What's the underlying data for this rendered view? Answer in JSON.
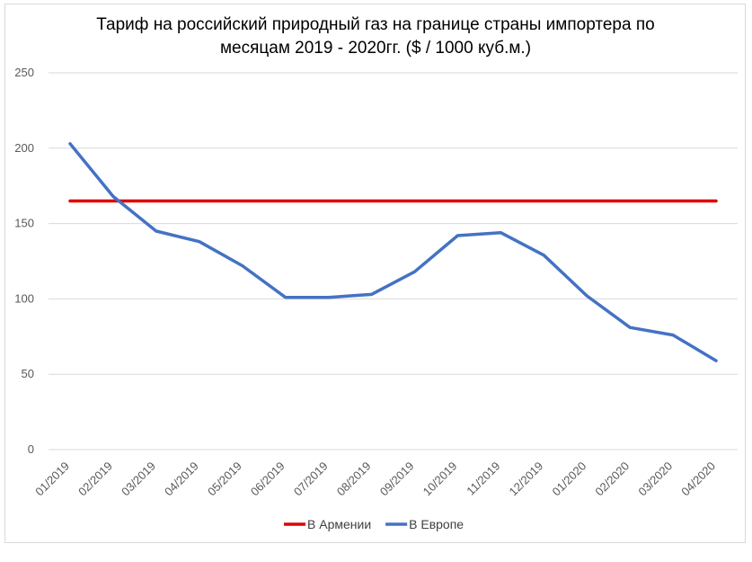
{
  "chart_data": {
    "type": "line",
    "title_lines": [
      "Тариф на российский природный газ на границе страны импортера по",
      "месяцам 2019 - 2020гг. ($ / 1000 куб.м.)"
    ],
    "categories": [
      "01/2019",
      "02/2019",
      "03/2019",
      "04/2019",
      "05/2019",
      "06/2019",
      "07/2019",
      "08/2019",
      "09/2019",
      "10/2019",
      "11/2019",
      "12/2019",
      "01/2020",
      "02/2020",
      "03/2020",
      "04/2020"
    ],
    "series": [
      {
        "name": "В Армении",
        "color": "#e00000",
        "values": [
          165,
          165,
          165,
          165,
          165,
          165,
          165,
          165,
          165,
          165,
          165,
          165,
          165,
          165,
          165,
          165
        ]
      },
      {
        "name": "В Европе",
        "color": "#4472c4",
        "values": [
          203,
          168,
          145,
          138,
          122,
          101,
          101,
          103,
          118,
          142,
          144,
          129,
          102,
          81,
          76,
          59
        ]
      }
    ],
    "y_ticks": [
      "0",
      "50",
      "100",
      "150",
      "200",
      "250"
    ],
    "ylim": [
      0,
      250
    ],
    "grid": true,
    "legend_position": "bottom"
  }
}
